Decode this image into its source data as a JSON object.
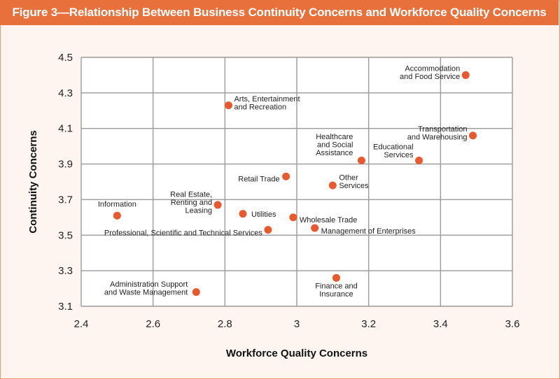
{
  "chart_data": {
    "type": "scatter",
    "title": "Figure 3—Relationship Between Business Continuity Concerns and Workforce Quality Concerns",
    "xlabel": "Workforce Quality Concerns",
    "ylabel": "Continuity Concerns",
    "xlim": [
      2.4,
      3.6
    ],
    "ylim": [
      3.1,
      4.5
    ],
    "xticks": [
      "2.4",
      "2.6",
      "2.8",
      "3",
      "3.2",
      "3.4",
      "3.6"
    ],
    "yticks": [
      "4.5",
      "4.3",
      "4.1",
      "3.9",
      "3.7",
      "3.5",
      "3.3",
      "3.1"
    ],
    "grid": true,
    "point_color": "#e8592e",
    "points": [
      {
        "name": "Accommodation and Food Service",
        "label_lines": [
          "Accommodation",
          "and Food Service"
        ],
        "x": 3.47,
        "y": 4.4
      },
      {
        "name": "Arts, Entertainment and Recreation",
        "label_lines": [
          "Arts, Entertainment",
          "and Recreation"
        ],
        "x": 2.81,
        "y": 4.23
      },
      {
        "name": "Transportation and Warehousing",
        "label_lines": [
          "Transportation",
          "and Warehousing"
        ],
        "x": 3.49,
        "y": 4.06
      },
      {
        "name": "Healthcare and Social Assistance",
        "label_lines": [
          "Healthcare",
          "and Social",
          "Assistance"
        ],
        "x": 3.18,
        "y": 3.92
      },
      {
        "name": "Educational Services",
        "label_lines": [
          "Educational",
          "Services"
        ],
        "x": 3.34,
        "y": 3.92
      },
      {
        "name": "Retail Trade",
        "label_lines": [
          "Retail Trade"
        ],
        "x": 2.97,
        "y": 3.83
      },
      {
        "name": "Other Services",
        "label_lines": [
          "Other",
          "Services"
        ],
        "x": 3.1,
        "y": 3.78
      },
      {
        "name": "Real Estate, Renting and Leasing",
        "label_lines": [
          "Real Estate,",
          "Renting and",
          "Leasing"
        ],
        "x": 2.78,
        "y": 3.67
      },
      {
        "name": "Information",
        "label_lines": [
          "Information"
        ],
        "x": 2.5,
        "y": 3.61
      },
      {
        "name": "Utilities",
        "label_lines": [
          "Utilities"
        ],
        "x": 2.85,
        "y": 3.62
      },
      {
        "name": "Wholesale Trade",
        "label_lines": [
          "Wholesale Trade"
        ],
        "x": 2.99,
        "y": 3.6
      },
      {
        "name": "Professional, Scientific and Technical Services",
        "label_lines": [
          "Professional, Scientific and Technical Services"
        ],
        "x": 2.92,
        "y": 3.53
      },
      {
        "name": "Management of Enterprises",
        "label_lines": [
          "Management of Enterprises"
        ],
        "x": 3.05,
        "y": 3.54
      },
      {
        "name": "Finance and Insurance",
        "label_lines": [
          "Finance and",
          "Insurance"
        ],
        "x": 3.11,
        "y": 3.26
      },
      {
        "name": "Administration Support and Waste Management",
        "label_lines": [
          "Administration Support",
          "and Waste Management"
        ],
        "x": 2.72,
        "y": 3.18
      }
    ]
  }
}
